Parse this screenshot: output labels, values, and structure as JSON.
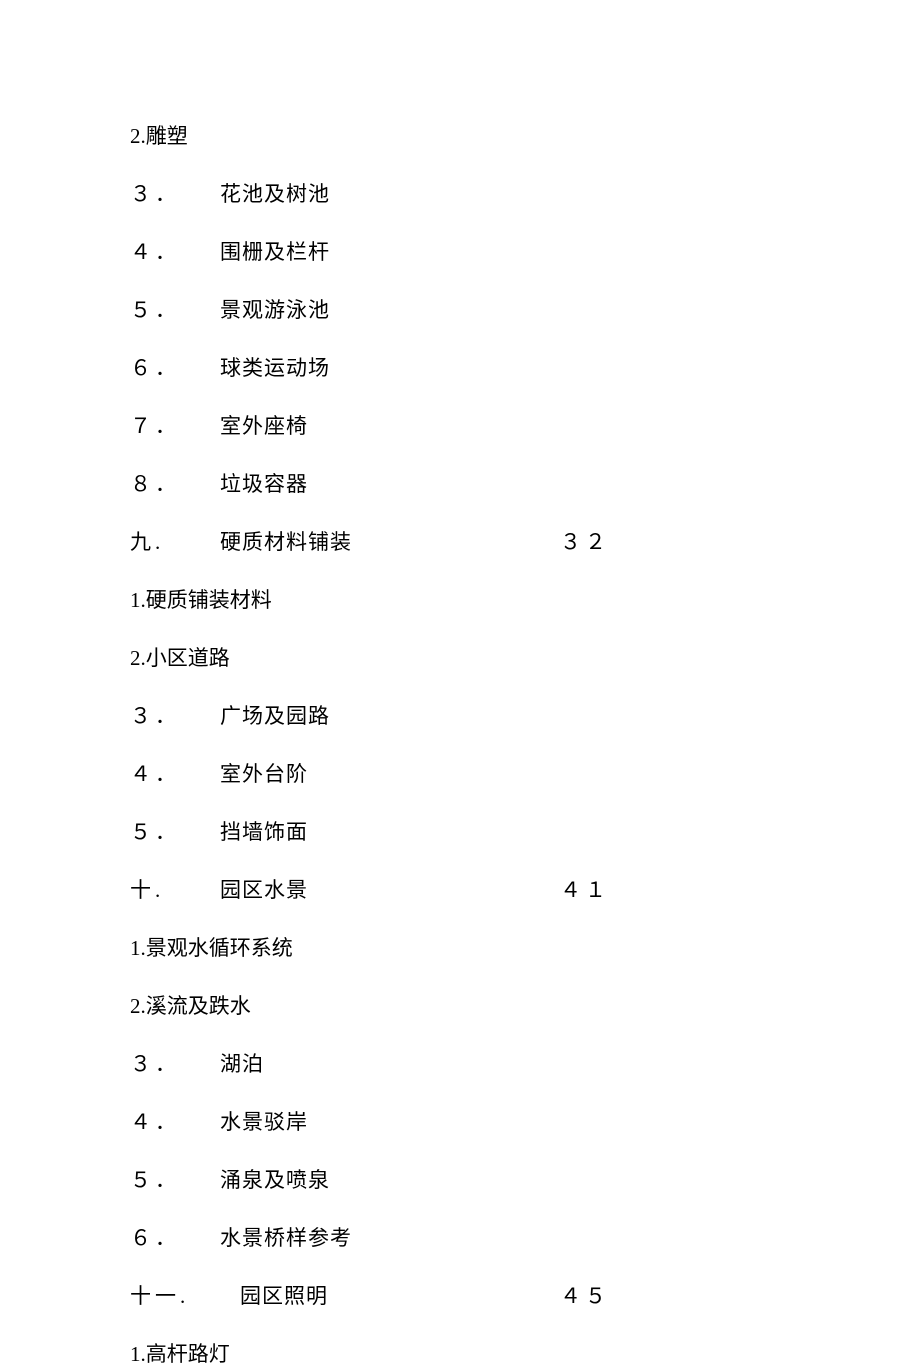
{
  "items": [
    {
      "type": "sub-compact",
      "number": "2.",
      "title": "雕塑"
    },
    {
      "type": "sub",
      "number": "３．",
      "title": "花池及树池"
    },
    {
      "type": "sub",
      "number": "４．",
      "title": "围栅及栏杆"
    },
    {
      "type": "sub",
      "number": "５．",
      "title": "景观游泳池"
    },
    {
      "type": "sub",
      "number": "６．",
      "title": "球类运动场"
    },
    {
      "type": "sub",
      "number": "７．",
      "title": "室外座椅"
    },
    {
      "type": "sub",
      "number": "８．",
      "title": "垃圾容器"
    },
    {
      "type": "section",
      "number": "九.",
      "title": "硬质材料铺装",
      "page": "３２"
    },
    {
      "type": "sub-compact",
      "number": "1.",
      "title": "硬质铺装材料"
    },
    {
      "type": "sub-compact",
      "number": "2.",
      "title": "小区道路"
    },
    {
      "type": "sub",
      "number": "３．",
      "title": "广场及园路"
    },
    {
      "type": "sub",
      "number": "４．",
      "title": "室外台阶"
    },
    {
      "type": "sub",
      "number": "５．",
      "title": "挡墙饰面"
    },
    {
      "type": "section",
      "number": "十.",
      "title": "园区水景",
      "page": "４１"
    },
    {
      "type": "sub-compact",
      "number": "1.",
      "title": "景观水循环系统"
    },
    {
      "type": "sub-compact",
      "number": "2.",
      "title": "溪流及跌水"
    },
    {
      "type": "sub",
      "number": "３．",
      "title": "湖泊"
    },
    {
      "type": "sub",
      "number": "４．",
      "title": "水景驳岸"
    },
    {
      "type": "sub",
      "number": "５．",
      "title": "涌泉及喷泉"
    },
    {
      "type": "sub",
      "number": "６．",
      "title": "水景桥样参考"
    },
    {
      "type": "section-wide",
      "number": "十一.",
      "title": "园区照明",
      "page": "４５"
    },
    {
      "type": "sub-compact",
      "number": "1.",
      "title": "高杆路灯"
    }
  ],
  "text_color": "#000000",
  "background_color": "#ffffff",
  "font_size": 21,
  "line_spacing": 28
}
